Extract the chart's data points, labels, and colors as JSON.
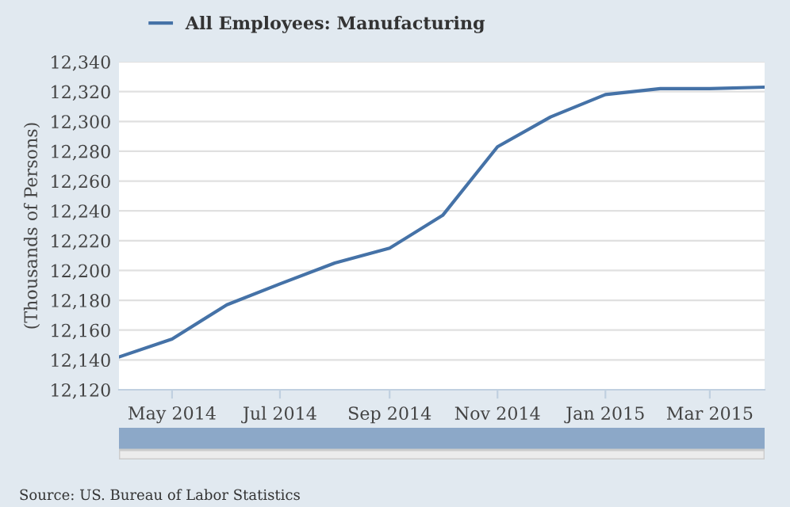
{
  "chart_data": {
    "type": "line",
    "ylabel": "(Thousands of Persons)",
    "x": [
      "2014-04",
      "2014-05",
      "2014-06",
      "2014-07",
      "2014-08",
      "2014-09",
      "2014-10",
      "2014-11",
      "2014-12",
      "2015-01",
      "2015-02",
      "2015-03",
      "2015-04"
    ],
    "series": [
      {
        "name": "All Employees: Manufacturing",
        "color": "#4572a7",
        "values": [
          12142,
          12154,
          12177,
          12191,
          12205,
          12215,
          12237,
          12283,
          12303,
          12318,
          12322,
          12322,
          12323
        ]
      }
    ],
    "xlim": [
      "2014-04",
      "2015-04"
    ],
    "xticks": [
      {
        "value": "2014-05",
        "label": "May 2014"
      },
      {
        "value": "2014-07",
        "label": "Jul 2014"
      },
      {
        "value": "2014-09",
        "label": "Sep 2014"
      },
      {
        "value": "2014-11",
        "label": "Nov 2014"
      },
      {
        "value": "2015-01",
        "label": "Jan 2015"
      },
      {
        "value": "2015-03",
        "label": "Mar 2015"
      }
    ],
    "ylim": [
      12120,
      12340
    ],
    "yticks": [
      {
        "value": 12120,
        "label": "12,120"
      },
      {
        "value": 12140,
        "label": "12,140"
      },
      {
        "value": 12160,
        "label": "12,160"
      },
      {
        "value": 12180,
        "label": "12,180"
      },
      {
        "value": 12200,
        "label": "12,200"
      },
      {
        "value": 12220,
        "label": "12,220"
      },
      {
        "value": 12240,
        "label": "12,240"
      },
      {
        "value": 12260,
        "label": "12,260"
      },
      {
        "value": 12280,
        "label": "12,280"
      },
      {
        "value": 12300,
        "label": "12,300"
      },
      {
        "value": 12320,
        "label": "12,320"
      },
      {
        "value": 12340,
        "label": "12,340"
      }
    ],
    "grid": "y",
    "legend": "top left",
    "marker": "none",
    "line_style": "solid",
    "annotations": [
      "Source: US. Bureau of Labor Statistics"
    ]
  }
}
